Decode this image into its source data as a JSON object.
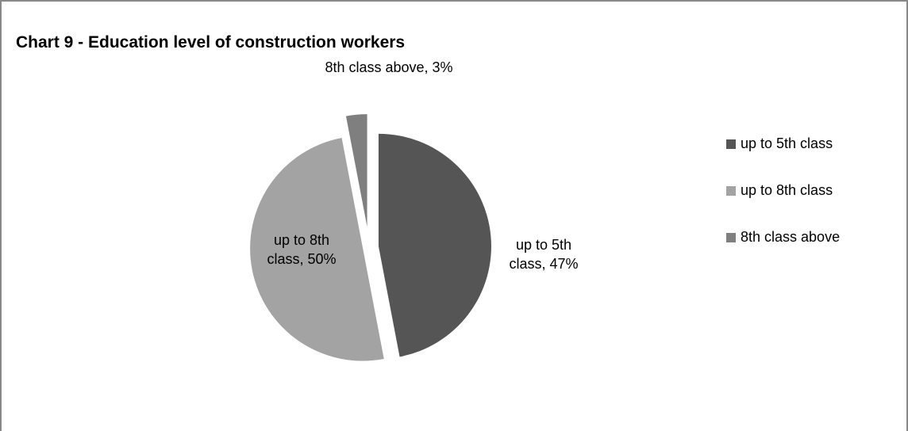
{
  "chart_data": {
    "type": "pie",
    "title": "Chart 9 - Education level of construction workers",
    "categories": [
      "up to 5th class",
      "up to 8th class",
      "8th class above"
    ],
    "values": [
      47,
      50,
      3
    ],
    "value_labels": [
      "up to 5th class, 47%",
      "up to 8th class, 50%",
      "8th class above, 3%"
    ],
    "colors": [
      "#555555",
      "#a3a3a3",
      "#7f7f7f"
    ],
    "legend": "right"
  }
}
